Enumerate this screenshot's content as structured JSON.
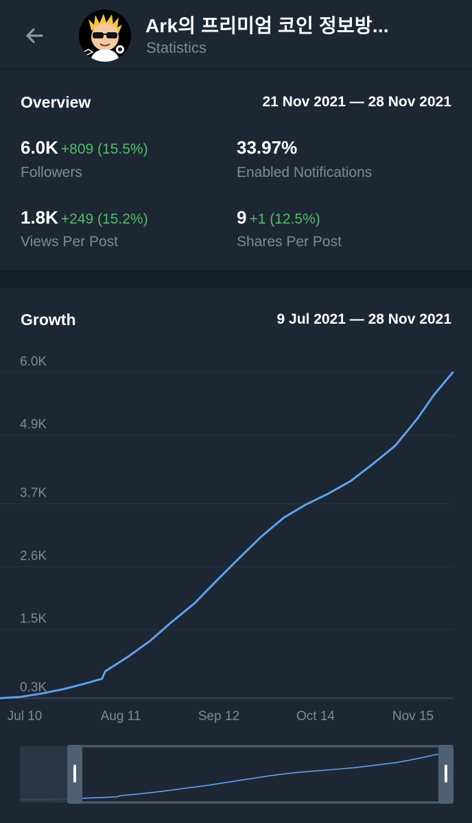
{
  "header": {
    "title": "Ark의 프리미엄 코인 정보방...",
    "subtitle": "Statistics",
    "back_icon": "arrow-left-icon",
    "avatar_icon": "channel-avatar-icon"
  },
  "overview": {
    "title": "Overview",
    "range": "21 Nov 2021 — 28 Nov 2021",
    "stats": [
      {
        "value": "6.0K",
        "delta": "+809 (15.5%)",
        "label": "Followers"
      },
      {
        "value": "33.97%",
        "delta": "",
        "label": "Enabled Notifications"
      },
      {
        "value": "1.8K",
        "delta": "+249 (15.2%)",
        "label": "Views Per Post"
      },
      {
        "value": "9",
        "delta": "+1 (12.5%)",
        "label": "Shares Per Post"
      }
    ]
  },
  "growth": {
    "title": "Growth",
    "range": "9 Jul 2021 — 28 Nov 2021"
  },
  "colors": {
    "background": "#1d2733",
    "line": "#5ea2ef",
    "positive": "#4fbf67",
    "muted": "#7d8b99"
  },
  "chart_data": {
    "type": "line",
    "title": "",
    "xlabel": "",
    "ylabel": "",
    "x_tick_labels": [
      "Jul 10",
      "Aug 11",
      "Sep 12",
      "Oct 14",
      "Nov 15"
    ],
    "y_tick_labels": [
      "0.3K",
      "1.5K",
      "2.6K",
      "3.7K",
      "4.9K",
      "6.0K"
    ],
    "y_ticks": [
      300,
      1500,
      2600,
      3700,
      4900,
      6000
    ],
    "ylim": [
      300,
      6000
    ],
    "xlim": [
      "2021-07-09",
      "2021-11-28"
    ],
    "grid": true,
    "series": [
      {
        "x": [
          "2021-07-09",
          "2021-07-15",
          "2021-07-22",
          "2021-07-29",
          "2021-08-05",
          "2021-08-10",
          "2021-08-11",
          "2021-08-18",
          "2021-08-25",
          "2021-09-01",
          "2021-09-08",
          "2021-09-15",
          "2021-09-22",
          "2021-09-29",
          "2021-10-06",
          "2021-10-13",
          "2021-10-20",
          "2021-10-27",
          "2021-11-03",
          "2021-11-10",
          "2021-11-17",
          "2021-11-22",
          "2021-11-28"
        ],
        "y": [
          300,
          320,
          380,
          460,
          560,
          640,
          770,
          1020,
          1300,
          1640,
          1960,
          2360,
          2750,
          3130,
          3460,
          3690,
          3880,
          4100,
          4400,
          4720,
          5200,
          5600,
          6000
        ]
      }
    ],
    "selected_range": [
      "2021-07-25",
      "2021-11-28"
    ]
  }
}
